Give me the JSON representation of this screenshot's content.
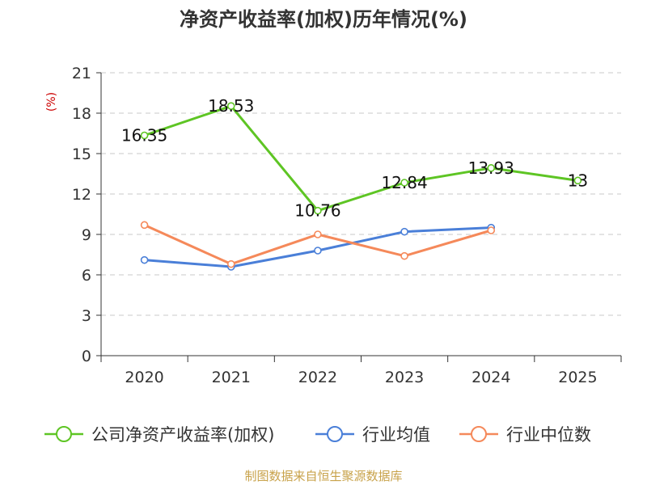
{
  "chart_data": {
    "type": "line",
    "title": "净资产收益率(加权)历年情况(%)",
    "ylabel": "(%)",
    "xlabel": "",
    "ylim": [
      0,
      21
    ],
    "yticks": [
      0,
      3,
      6,
      9,
      12,
      15,
      18,
      21
    ],
    "categories": [
      "2020",
      "2021",
      "2022",
      "2023",
      "2024",
      "2025"
    ],
    "grid": true,
    "legend_position": "bottom",
    "series": [
      {
        "name": "公司净资产收益率(加权)",
        "color": "#5ec524",
        "values": [
          16.35,
          18.53,
          10.76,
          12.84,
          13.93,
          13
        ],
        "labels": [
          "16.35",
          "18.53",
          "10.76",
          "12.84",
          "13.93",
          "13"
        ]
      },
      {
        "name": "行业均值",
        "color": "#4a7fd8",
        "values": [
          7.1,
          6.6,
          7.8,
          9.2,
          9.5,
          null
        ],
        "labels": []
      },
      {
        "name": "行业中位数",
        "color": "#f5895a",
        "values": [
          9.7,
          6.8,
          9.0,
          7.4,
          9.3,
          null
        ],
        "labels": []
      }
    ],
    "source": "制图数据来自恒生聚源数据库"
  }
}
